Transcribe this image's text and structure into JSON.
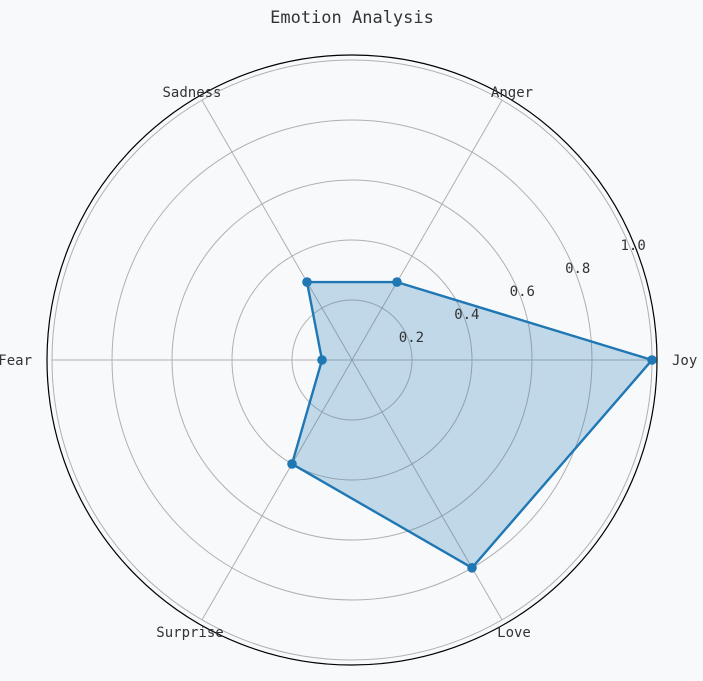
{
  "chart_data": {
    "type": "radar",
    "title": "Emotion Analysis",
    "categories": [
      "Joy",
      "Anger",
      "Sadness",
      "Fear",
      "Surprise",
      "Love"
    ],
    "series": [
      {
        "values": [
          1.0,
          0.3,
          0.3,
          0.1,
          0.4,
          0.8
        ],
        "color": "#1f77b4",
        "fill_color": "#1f77b4",
        "fill_opacity": 0.25
      }
    ],
    "rlim": [
      0,
      1.0
    ],
    "r_ticks": [
      "0.2",
      "0.4",
      "0.6",
      "0.8",
      "1.0"
    ],
    "r_tick_values": [
      0.2,
      0.4,
      0.6,
      0.8,
      1.0
    ],
    "grid": true,
    "background_color": "#f7f9fb",
    "grid_color": "#b0b0b0"
  }
}
